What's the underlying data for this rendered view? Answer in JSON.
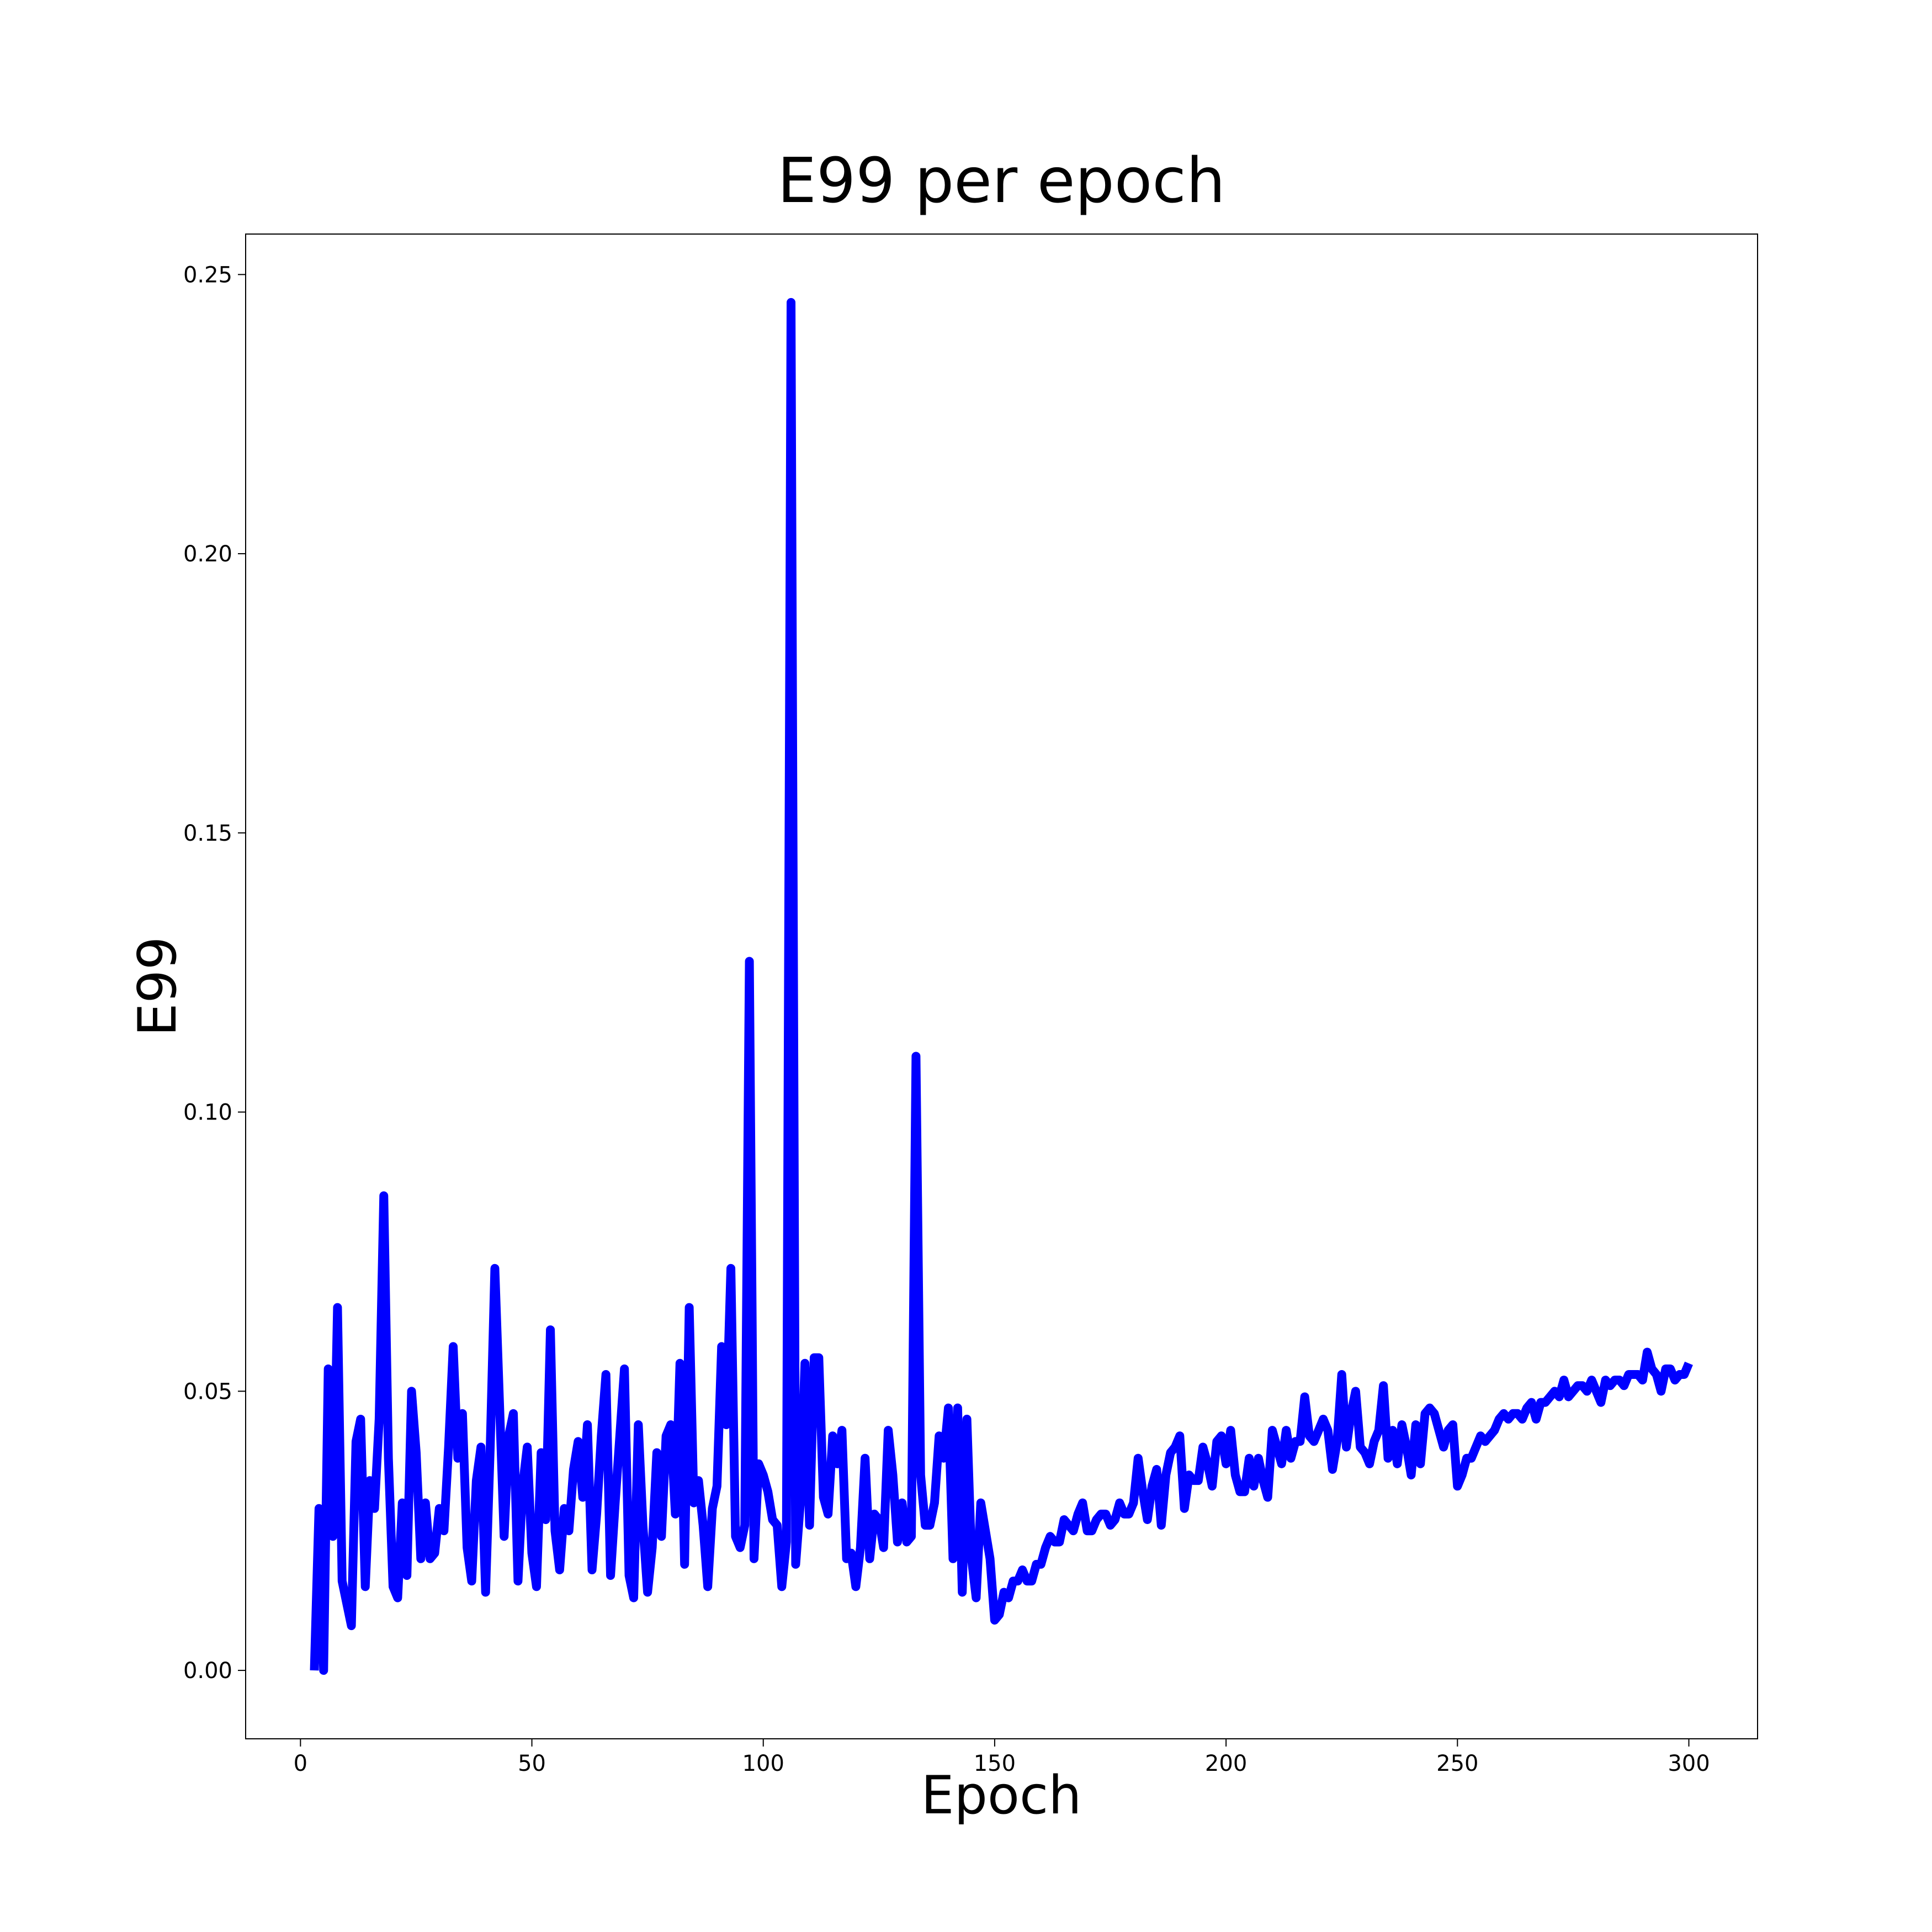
{
  "chart_data": {
    "type": "line",
    "title": "E99 per epoch",
    "x_label": "Epoch",
    "y_label": "E99",
    "color": "#0000ff",
    "x": [
      3,
      4,
      5,
      6,
      7,
      8,
      9,
      10,
      11,
      12,
      13,
      14,
      15,
      16,
      17,
      18,
      19,
      20,
      21,
      22,
      23,
      24,
      25,
      26,
      27,
      28,
      29,
      30,
      31,
      32,
      33,
      34,
      35,
      36,
      37,
      38,
      39,
      40,
      41,
      42,
      43,
      44,
      45,
      46,
      47,
      48,
      49,
      50,
      51,
      52,
      53,
      54,
      55,
      56,
      57,
      58,
      59,
      60,
      61,
      62,
      63,
      64,
      65,
      66,
      67,
      68,
      69,
      70,
      71,
      72,
      73,
      74,
      75,
      76,
      77,
      78,
      79,
      80,
      81,
      82,
      83,
      84,
      85,
      86,
      87,
      88,
      89,
      90,
      91,
      92,
      93,
      94,
      95,
      96,
      97,
      98,
      99,
      100,
      101,
      102,
      103,
      104,
      105,
      106,
      107,
      108,
      109,
      110,
      111,
      112,
      113,
      114,
      115,
      116,
      117,
      118,
      119,
      120,
      121,
      122,
      123,
      124,
      125,
      126,
      127,
      128,
      129,
      130,
      131,
      132,
      133,
      134,
      135,
      136,
      137,
      138,
      139,
      140,
      141,
      142,
      143,
      144,
      145,
      146,
      147,
      148,
      149,
      150,
      151,
      152,
      153,
      154,
      155,
      156,
      157,
      158,
      159,
      160,
      161,
      162,
      163,
      164,
      165,
      166,
      167,
      168,
      169,
      170,
      171,
      172,
      173,
      174,
      175,
      176,
      177,
      178,
      179,
      180,
      181,
      182,
      183,
      184,
      185,
      186,
      187,
      188,
      189,
      190,
      191,
      192,
      193,
      194,
      195,
      196,
      197,
      198,
      199,
      200,
      201,
      202,
      203,
      204,
      205,
      206,
      207,
      208,
      209,
      210,
      211,
      212,
      213,
      214,
      215,
      216,
      217,
      218,
      219,
      220,
      221,
      222,
      223,
      224,
      225,
      226,
      227,
      228,
      229,
      230,
      231,
      232,
      233,
      234,
      235,
      236,
      237,
      238,
      239,
      240,
      241,
      242,
      243,
      244,
      245,
      246,
      247,
      248,
      249,
      250,
      251,
      252,
      253,
      254,
      255,
      256,
      257,
      258,
      259,
      260,
      261,
      262,
      263,
      264,
      265,
      266,
      267,
      268,
      269,
      270,
      271,
      272,
      273,
      274,
      275,
      276,
      277,
      278,
      279,
      280,
      281,
      282,
      283,
      284,
      285,
      286,
      287,
      288,
      289,
      290,
      291,
      292,
      293,
      294,
      295,
      296,
      297,
      298,
      299,
      300
    ],
    "values": [
      0.0,
      0.029,
      0.0,
      0.054,
      0.024,
      0.065,
      0.016,
      0.012,
      0.008,
      0.041,
      0.045,
      0.015,
      0.034,
      0.029,
      0.045,
      0.085,
      0.038,
      0.015,
      0.013,
      0.03,
      0.017,
      0.05,
      0.039,
      0.02,
      0.03,
      0.02,
      0.021,
      0.029,
      0.025,
      0.04,
      0.058,
      0.038,
      0.046,
      0.022,
      0.016,
      0.034,
      0.04,
      0.014,
      0.04,
      0.072,
      0.048,
      0.024,
      0.042,
      0.046,
      0.016,
      0.033,
      0.04,
      0.021,
      0.015,
      0.039,
      0.027,
      0.061,
      0.025,
      0.018,
      0.029,
      0.025,
      0.036,
      0.041,
      0.031,
      0.044,
      0.018,
      0.028,
      0.042,
      0.053,
      0.017,
      0.03,
      0.042,
      0.054,
      0.017,
      0.013,
      0.044,
      0.026,
      0.014,
      0.022,
      0.039,
      0.024,
      0.042,
      0.044,
      0.028,
      0.055,
      0.019,
      0.065,
      0.03,
      0.034,
      0.026,
      0.015,
      0.029,
      0.033,
      0.058,
      0.044,
      0.072,
      0.024,
      0.022,
      0.026,
      0.127,
      0.02,
      0.037,
      0.035,
      0.032,
      0.027,
      0.026,
      0.015,
      0.023,
      0.245,
      0.019,
      0.03,
      0.055,
      0.026,
      0.056,
      0.056,
      0.031,
      0.028,
      0.042,
      0.037,
      0.043,
      0.02,
      0.021,
      0.015,
      0.022,
      0.038,
      0.02,
      0.028,
      0.027,
      0.022,
      0.043,
      0.035,
      0.023,
      0.03,
      0.023,
      0.024,
      0.11,
      0.035,
      0.026,
      0.026,
      0.03,
      0.042,
      0.038,
      0.047,
      0.02,
      0.047,
      0.014,
      0.045,
      0.02,
      0.013,
      0.03,
      0.025,
      0.02,
      0.009,
      0.01,
      0.014,
      0.013,
      0.016,
      0.016,
      0.018,
      0.016,
      0.016,
      0.019,
      0.019,
      0.022,
      0.024,
      0.023,
      0.023,
      0.027,
      0.026,
      0.025,
      0.028,
      0.03,
      0.025,
      0.025,
      0.027,
      0.028,
      0.028,
      0.026,
      0.027,
      0.03,
      0.028,
      0.028,
      0.03,
      0.038,
      0.032,
      0.027,
      0.033,
      0.036,
      0.026,
      0.035,
      0.039,
      0.04,
      0.042,
      0.029,
      0.035,
      0.034,
      0.034,
      0.04,
      0.037,
      0.033,
      0.041,
      0.042,
      0.037,
      0.043,
      0.035,
      0.032,
      0.032,
      0.038,
      0.033,
      0.038,
      0.034,
      0.031,
      0.043,
      0.04,
      0.037,
      0.043,
      0.038,
      0.041,
      0.041,
      0.049,
      0.042,
      0.041,
      0.043,
      0.045,
      0.043,
      0.036,
      0.041,
      0.053,
      0.04,
      0.046,
      0.05,
      0.04,
      0.039,
      0.037,
      0.041,
      0.043,
      0.051,
      0.038,
      0.043,
      0.037,
      0.044,
      0.04,
      0.035,
      0.044,
      0.037,
      0.046,
      0.047,
      0.046,
      0.043,
      0.04,
      0.043,
      0.044,
      0.033,
      0.035,
      0.038,
      0.038,
      0.04,
      0.042,
      0.041,
      0.042,
      0.043,
      0.045,
      0.046,
      0.045,
      0.046,
      0.046,
      0.045,
      0.047,
      0.048,
      0.045,
      0.048,
      0.048,
      0.049,
      0.05,
      0.049,
      0.052,
      0.049,
      0.05,
      0.051,
      0.051,
      0.05,
      0.052,
      0.05,
      0.048,
      0.052,
      0.051,
      0.052,
      0.052,
      0.051,
      0.053,
      0.053,
      0.053,
      0.052,
      0.057,
      0.054,
      0.053,
      0.05,
      0.054,
      0.054,
      0.052,
      0.053,
      0.053,
      0.055
    ],
    "xlim": [
      -11.85,
      314.85
    ],
    "xticks": [
      0,
      50,
      100,
      150,
      200,
      250,
      300
    ],
    "ylim": [
      -0.01225,
      0.25725
    ],
    "yticks": [
      {
        "value": 0,
        "label": "0.00"
      },
      0.05,
      {
        "value": 0.1,
        "label": "0.10"
      },
      0.15,
      {
        "value": 0.2,
        "label": "0.20"
      },
      0.25
    ],
    "grid": false
  }
}
